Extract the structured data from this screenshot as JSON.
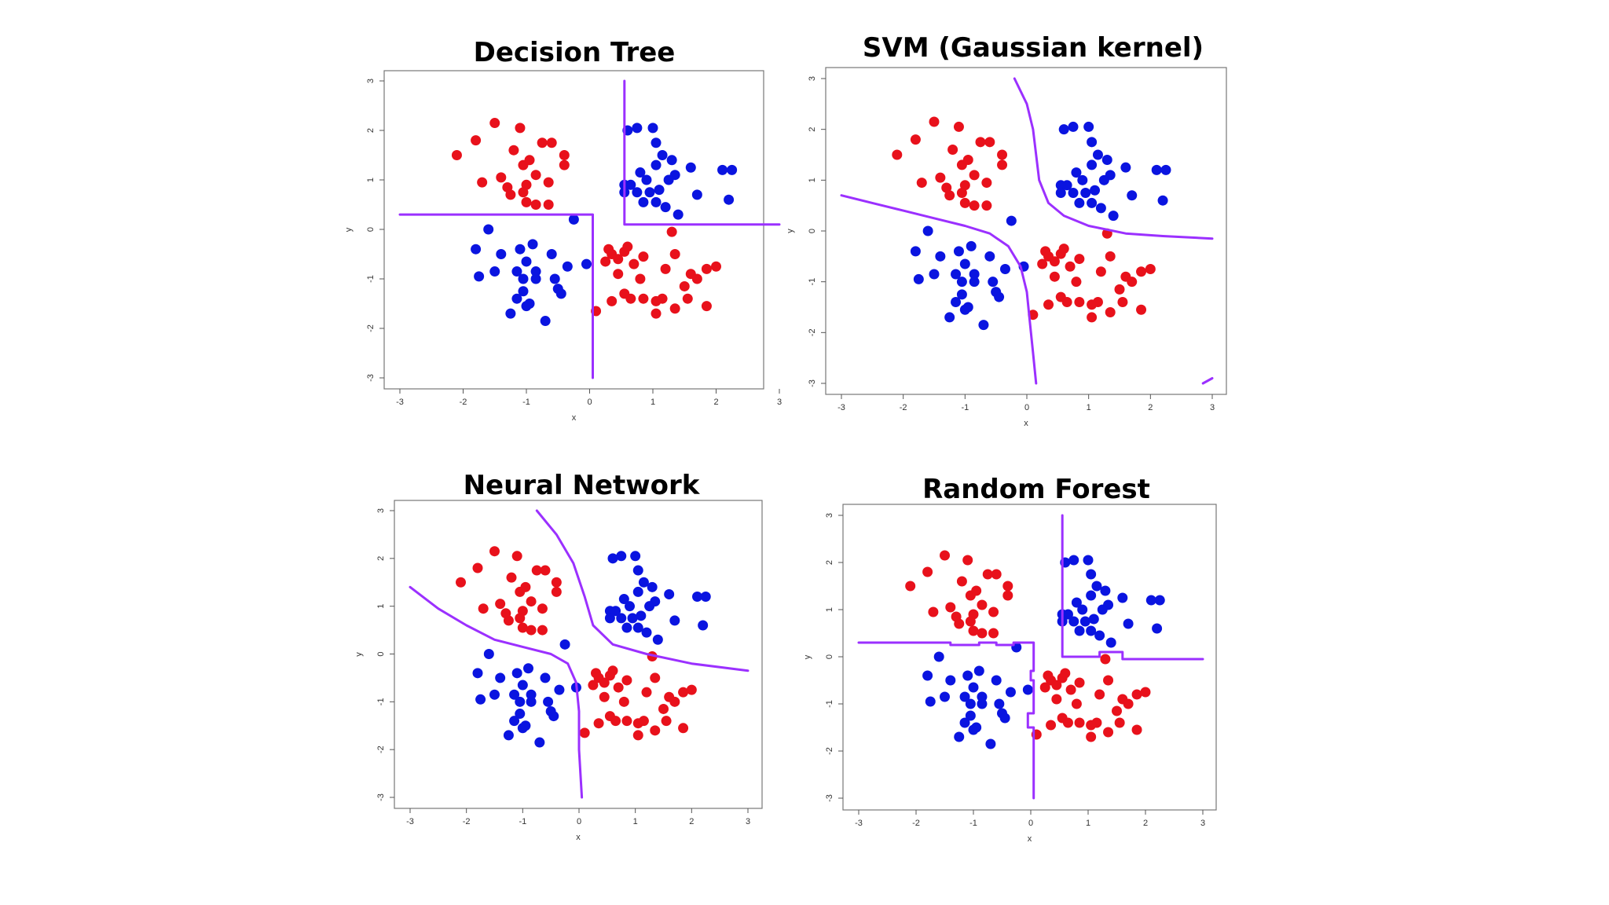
{
  "colors": {
    "class_a": "#e8111b",
    "class_b": "#0a14e0",
    "boundary": "#9b30ff"
  },
  "chart_data": [
    {
      "type": "scatter",
      "title": "Decision Tree",
      "xlabel": "x",
      "ylabel": "y",
      "xlim": [
        -3,
        3
      ],
      "ylim": [
        -3,
        3
      ],
      "xticks": [
        "-3",
        "-2",
        "-1",
        "0",
        "1",
        "2",
        "3"
      ],
      "yticks": [
        "-3",
        "-2",
        "-1",
        "0",
        "1",
        "2",
        "3"
      ],
      "boundaries": [
        [
          [
            -3.0,
            0.3
          ],
          [
            0.05,
            0.3
          ],
          [
            0.05,
            -3.0
          ]
        ],
        [
          [
            0.55,
            3.0
          ],
          [
            0.55,
            0.1
          ],
          [
            3.0,
            0.1
          ]
        ]
      ]
    },
    {
      "type": "scatter",
      "title": "SVM (Gaussian kernel)",
      "xlabel": "x",
      "ylabel": "y",
      "xlim": [
        -3,
        3
      ],
      "ylim": [
        -3,
        3
      ],
      "xticks": [
        "-3",
        "-2",
        "-1",
        "0",
        "1",
        "2",
        "3"
      ],
      "yticks": [
        "-3",
        "-2",
        "-1",
        "0",
        "1",
        "2",
        "3"
      ],
      "boundaries": [
        [
          [
            -0.2,
            3.0
          ],
          [
            0.0,
            2.5
          ],
          [
            0.1,
            2.0
          ],
          [
            0.15,
            1.5
          ],
          [
            0.2,
            1.0
          ],
          [
            0.35,
            0.55
          ],
          [
            0.6,
            0.3
          ],
          [
            1.0,
            0.1
          ],
          [
            1.6,
            -0.05
          ],
          [
            2.2,
            -0.1
          ],
          [
            3.0,
            -0.15
          ]
        ],
        [
          [
            -3.0,
            0.7
          ],
          [
            -2.5,
            0.55
          ],
          [
            -2.0,
            0.4
          ],
          [
            -1.5,
            0.25
          ],
          [
            -1.0,
            0.1
          ],
          [
            -0.6,
            -0.05
          ],
          [
            -0.3,
            -0.3
          ],
          [
            -0.1,
            -0.7
          ],
          [
            0.0,
            -1.2
          ],
          [
            0.05,
            -1.8
          ],
          [
            0.1,
            -2.4
          ],
          [
            0.15,
            -3.0
          ]
        ],
        [
          [
            2.85,
            -3.0
          ],
          [
            3.0,
            -2.9
          ]
        ]
      ]
    },
    {
      "type": "scatter",
      "title": "Neural Network",
      "xlabel": "x",
      "ylabel": "y",
      "xlim": [
        -3,
        3
      ],
      "ylim": [
        -3,
        3
      ],
      "xticks": [
        "-3",
        "-2",
        "-1",
        "0",
        "1",
        "2",
        "3"
      ],
      "yticks": [
        "-3",
        "-2",
        "-1",
        "0",
        "1",
        "2",
        "3"
      ],
      "boundaries": [
        [
          [
            -0.75,
            3.0
          ],
          [
            -0.4,
            2.5
          ],
          [
            -0.1,
            1.9
          ],
          [
            0.1,
            1.2
          ],
          [
            0.25,
            0.6
          ],
          [
            0.6,
            0.2
          ],
          [
            1.2,
            0.0
          ],
          [
            2.0,
            -0.2
          ],
          [
            3.0,
            -0.35
          ]
        ],
        [
          [
            -3.0,
            1.4
          ],
          [
            -2.5,
            0.95
          ],
          [
            -2.0,
            0.6
          ],
          [
            -1.5,
            0.3
          ],
          [
            -1.0,
            0.15
          ],
          [
            -0.5,
            0.0
          ],
          [
            -0.2,
            -0.2
          ],
          [
            -0.05,
            -0.6
          ],
          [
            0.0,
            -1.2
          ],
          [
            0.0,
            -2.0
          ],
          [
            0.05,
            -3.0
          ]
        ]
      ]
    },
    {
      "type": "scatter",
      "title": "Random Forest",
      "xlabel": "x",
      "ylabel": "y",
      "xlim": [
        -3,
        3
      ],
      "ylim": [
        -3,
        3
      ],
      "xticks": [
        "-3",
        "-2",
        "-1",
        "0",
        "1",
        "2",
        "3"
      ],
      "yticks": [
        "-3",
        "-2",
        "-1",
        "0",
        "1",
        "2",
        "3"
      ],
      "boundaries": [
        [
          [
            -3.0,
            0.3
          ],
          [
            -1.4,
            0.3
          ],
          [
            -1.4,
            0.25
          ],
          [
            -0.9,
            0.25
          ],
          [
            -0.9,
            0.3
          ],
          [
            -0.6,
            0.3
          ],
          [
            -0.6,
            0.25
          ],
          [
            -0.3,
            0.25
          ],
          [
            -0.3,
            0.3
          ],
          [
            0.05,
            0.3
          ],
          [
            0.05,
            -0.3
          ],
          [
            0.0,
            -0.3
          ],
          [
            0.0,
            -0.5
          ],
          [
            0.05,
            -0.5
          ],
          [
            0.05,
            -1.2
          ],
          [
            -0.05,
            -1.2
          ],
          [
            -0.05,
            -1.5
          ],
          [
            0.05,
            -1.5
          ],
          [
            0.05,
            -3.0
          ]
        ],
        [
          [
            0.55,
            3.0
          ],
          [
            0.55,
            0.0
          ],
          [
            1.2,
            0.0
          ],
          [
            1.2,
            0.1
          ],
          [
            1.6,
            0.1
          ],
          [
            1.6,
            -0.05
          ],
          [
            3.0,
            -0.05
          ]
        ]
      ]
    }
  ],
  "points": {
    "class_a": [
      [
        -2.1,
        1.5
      ],
      [
        -1.8,
        1.8
      ],
      [
        -1.5,
        2.15
      ],
      [
        -1.2,
        1.6
      ],
      [
        -1.1,
        2.05
      ],
      [
        -1.05,
        1.3
      ],
      [
        -0.95,
        1.4
      ],
      [
        -0.6,
        1.75
      ],
      [
        -0.75,
        1.75
      ],
      [
        -0.4,
        1.5
      ],
      [
        -0.4,
        1.3
      ],
      [
        -0.85,
        1.1
      ],
      [
        -0.65,
        0.95
      ],
      [
        -1.0,
        0.9
      ],
      [
        -1.25,
        0.7
      ],
      [
        -1.05,
        0.75
      ],
      [
        -1.0,
        0.55
      ],
      [
        -0.85,
        0.5
      ],
      [
        -0.65,
        0.5
      ],
      [
        -1.4,
        1.05
      ],
      [
        -1.7,
        0.95
      ],
      [
        -1.3,
        0.85
      ],
      [
        0.3,
        -0.4
      ],
      [
        0.35,
        -0.5
      ],
      [
        0.55,
        -0.45
      ],
      [
        0.6,
        -0.35
      ],
      [
        0.45,
        -0.6
      ],
      [
        0.25,
        -0.65
      ],
      [
        0.7,
        -0.7
      ],
      [
        0.85,
        -0.55
      ],
      [
        1.35,
        -0.5
      ],
      [
        1.6,
        -0.9
      ],
      [
        1.7,
        -1.0
      ],
      [
        1.85,
        -0.8
      ],
      [
        2.0,
        -0.75
      ],
      [
        1.2,
        -0.8
      ],
      [
        0.8,
        -1.0
      ],
      [
        0.55,
        -1.3
      ],
      [
        0.45,
        -0.9
      ],
      [
        1.5,
        -1.15
      ],
      [
        1.15,
        -1.4
      ],
      [
        1.05,
        -1.45
      ],
      [
        1.35,
        -1.6
      ],
      [
        1.55,
        -1.4
      ],
      [
        1.85,
        -1.55
      ],
      [
        1.05,
        -1.7
      ],
      [
        0.85,
        -1.4
      ],
      [
        0.65,
        -1.4
      ],
      [
        0.35,
        -1.45
      ],
      [
        0.1,
        -1.65
      ],
      [
        1.3,
        -0.05
      ]
    ],
    "class_b": [
      [
        0.6,
        2.0
      ],
      [
        0.75,
        2.05
      ],
      [
        1.0,
        2.05
      ],
      [
        1.15,
        1.5
      ],
      [
        1.05,
        1.75
      ],
      [
        1.05,
        1.3
      ],
      [
        1.3,
        1.4
      ],
      [
        1.35,
        1.1
      ],
      [
        1.25,
        1.0
      ],
      [
        0.8,
        1.15
      ],
      [
        0.9,
        1.0
      ],
      [
        0.55,
        0.9
      ],
      [
        0.65,
        0.9
      ],
      [
        0.75,
        0.75
      ],
      [
        0.55,
        0.75
      ],
      [
        0.95,
        0.75
      ],
      [
        1.1,
        0.8
      ],
      [
        1.05,
        0.55
      ],
      [
        0.85,
        0.55
      ],
      [
        1.2,
        0.45
      ],
      [
        1.4,
        0.3
      ],
      [
        1.6,
        1.25
      ],
      [
        2.1,
        1.2
      ],
      [
        2.25,
        1.2
      ],
      [
        2.2,
        0.6
      ],
      [
        1.7,
        0.7
      ],
      [
        -0.25,
        0.2
      ],
      [
        -1.6,
        0.0
      ],
      [
        -1.8,
        -0.4
      ],
      [
        -1.4,
        -0.5
      ],
      [
        -1.1,
        -0.4
      ],
      [
        -0.9,
        -0.3
      ],
      [
        -1.0,
        -0.65
      ],
      [
        -0.85,
        -0.85
      ],
      [
        -1.15,
        -0.85
      ],
      [
        -1.05,
        -1.0
      ],
      [
        -0.85,
        -1.0
      ],
      [
        -1.05,
        -1.25
      ],
      [
        -1.15,
        -1.4
      ],
      [
        -1.0,
        -1.55
      ],
      [
        -0.55,
        -1.0
      ],
      [
        -0.5,
        -1.2
      ],
      [
        -0.45,
        -1.3
      ],
      [
        -1.25,
        -1.7
      ],
      [
        -0.95,
        -1.5
      ],
      [
        -0.7,
        -1.85
      ],
      [
        -1.5,
        -0.85
      ],
      [
        -1.75,
        -0.95
      ],
      [
        -0.6,
        -0.5
      ],
      [
        -0.05,
        -0.7
      ],
      [
        -0.35,
        -0.75
      ]
    ]
  }
}
